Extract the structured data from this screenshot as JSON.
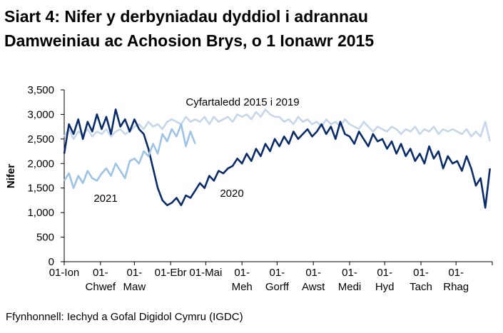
{
  "chart_data": {
    "type": "line",
    "title": "Siart 4: Nifer y derbyniadau dyddiol i adrannau Damweiniau ac Achosion Brys, o 1 Ionawr 2015",
    "y_label": "Nifer",
    "source": "Ffynhonnell: Iechyd a Gofal Digidol Cymru (IGDC)",
    "xlim": [
      0,
      366
    ],
    "xticks": [
      {
        "value": 0,
        "label": "01-Ion"
      },
      {
        "value": 31,
        "label": "01-Chwef"
      },
      {
        "value": 60,
        "label": "01-Maw"
      },
      {
        "value": 91,
        "label": "01-Ebr"
      },
      {
        "value": 121,
        "label": "01-Mai"
      },
      {
        "value": 152,
        "label": "01-Meh"
      },
      {
        "value": 182,
        "label": "01-Gorff"
      },
      {
        "value": 213,
        "label": "01-Awst"
      },
      {
        "value": 244,
        "label": "01-Medi"
      },
      {
        "value": 274,
        "label": "01-Hyd"
      },
      {
        "value": 305,
        "label": "01-Tach"
      },
      {
        "value": 335,
        "label": "01-Rhag"
      }
    ],
    "ylim": [
      0,
      3500
    ],
    "yticks": [
      0,
      500,
      {
        "value": 1000,
        "label": "1,000"
      },
      {
        "value": 1500,
        "label": "1,500"
      },
      {
        "value": 2000,
        "label": "2,000"
      },
      {
        "value": 2500,
        "label": "2,500"
      },
      {
        "value": 3000,
        "label": "3,000"
      },
      {
        "value": 3500,
        "label": "3,500"
      }
    ],
    "grid": false,
    "x": [
      0,
      4,
      8,
      12,
      16,
      20,
      24,
      28,
      32,
      36,
      40,
      44,
      48,
      52,
      56,
      60,
      64,
      68,
      72,
      76,
      80,
      84,
      88,
      92,
      96,
      100,
      104,
      108,
      112,
      116,
      120,
      124,
      128,
      132,
      136,
      140,
      144,
      148,
      152,
      156,
      160,
      164,
      168,
      172,
      176,
      180,
      184,
      188,
      192,
      196,
      200,
      204,
      208,
      212,
      216,
      220,
      224,
      228,
      232,
      236,
      240,
      244,
      248,
      252,
      256,
      260,
      264,
      268,
      272,
      276,
      280,
      284,
      288,
      292,
      296,
      300,
      304,
      308,
      312,
      316,
      320,
      324,
      328,
      332,
      336,
      340,
      344,
      348,
      352,
      356,
      360,
      364
    ],
    "series": [
      {
        "name": "Cyfartaledd 2015 i 2019",
        "color": "#c6d7ea",
        "values": [
          2550,
          2700,
          2500,
          2650,
          2600,
          2700,
          2550,
          2650,
          2600,
          2700,
          2550,
          2650,
          2700,
          2600,
          2650,
          2750,
          2800,
          2700,
          2850,
          2750,
          2800,
          2700,
          2850,
          2900,
          2850,
          2800,
          2950,
          2850,
          2900,
          2850,
          2950,
          2800,
          2950,
          2850,
          2900,
          2950,
          2850,
          3000,
          2950,
          3000,
          2900,
          3050,
          2950,
          3100,
          3000,
          2950,
          2950,
          2850,
          2900,
          2800,
          2950,
          2850,
          2900,
          2800,
          2850,
          2750,
          2900,
          2800,
          2850,
          2750,
          2900,
          2800,
          2750,
          2700,
          2850,
          2750,
          2650,
          2750,
          2700,
          2650,
          2750,
          2700,
          2600,
          2700,
          2650,
          2750,
          2600,
          2700,
          2650,
          2750,
          2600,
          2700,
          2650,
          2700,
          2650,
          2600,
          2700,
          2550,
          2650,
          2550,
          2850,
          2450
        ]
      },
      {
        "name": "2020",
        "color": "#0b2c6b",
        "values": [
          2200,
          2800,
          2600,
          2900,
          2500,
          2850,
          2650,
          3000,
          2700,
          2950,
          2600,
          3100,
          2750,
          2900,
          2650,
          2900,
          2700,
          2600,
          2300,
          1900,
          1500,
          1250,
          1150,
          1200,
          1300,
          1150,
          1350,
          1300,
          1450,
          1600,
          1500,
          1750,
          1650,
          1850,
          1800,
          1900,
          1950,
          2100,
          2000,
          2200,
          2050,
          2300,
          2150,
          2400,
          2250,
          2500,
          2350,
          2550,
          2400,
          2650,
          2500,
          2600,
          2700,
          2550,
          2650,
          2800,
          2600,
          2750,
          2500,
          2850,
          2600,
          2550,
          2400,
          2650,
          2500,
          2350,
          2600,
          2450,
          2500,
          2300,
          2450,
          2200,
          2400,
          2150,
          2300,
          2050,
          2200,
          2000,
          2350,
          2100,
          2250,
          1900,
          2150,
          2000,
          2050,
          1850,
          2150,
          1900,
          1550,
          1700,
          1100,
          1900
        ]
      },
      {
        "name": "2021",
        "color": "#9dc3e6",
        "values": [
          1650,
          1800,
          1500,
          1750,
          1600,
          1850,
          1700,
          1650,
          1800,
          1900,
          1750,
          2000,
          1850,
          1700,
          2050,
          2100,
          2000,
          2250,
          2150,
          2400,
          2200,
          2600,
          2450,
          2700,
          2550,
          2800,
          2350,
          2650,
          2400,
          null,
          null,
          null,
          null,
          null,
          null,
          null,
          null,
          null,
          null,
          null,
          null,
          null,
          null,
          null,
          null,
          null,
          null,
          null,
          null,
          null,
          null,
          null,
          null,
          null,
          null,
          null,
          null,
          null,
          null,
          null,
          null,
          null,
          null,
          null,
          null,
          null,
          null,
          null,
          null,
          null,
          null,
          null,
          null,
          null,
          null,
          null,
          null,
          null,
          null,
          null,
          null,
          null,
          null,
          null,
          null,
          null,
          null,
          null,
          null,
          null,
          null,
          null
        ]
      }
    ]
  }
}
